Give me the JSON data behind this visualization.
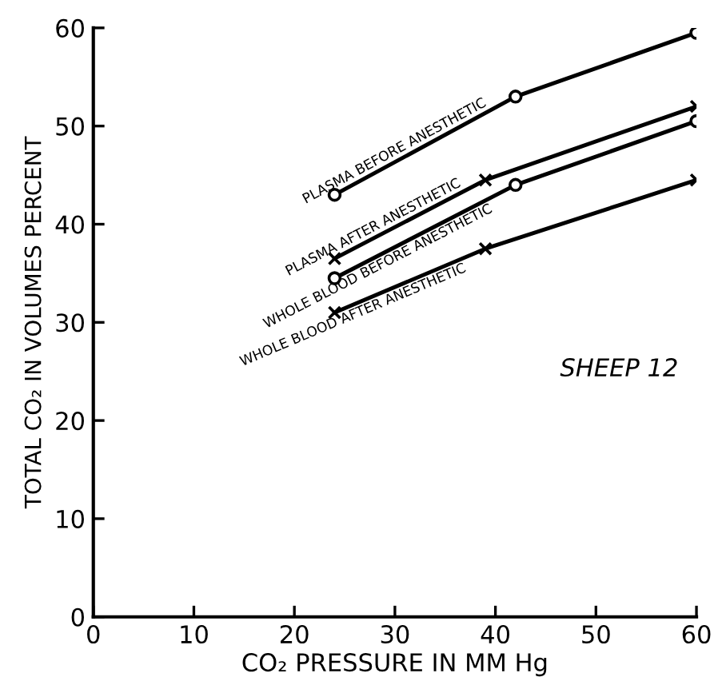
{
  "chart_data": {
    "type": "line",
    "xlabel": "CO₂ PRESSURE IN MM Hg",
    "ylabel": "TOTAL CO₂ IN VOLUMES PERCENT",
    "annotations": [
      "SHEEP 12"
    ],
    "xlim": [
      0,
      60
    ],
    "ylim": [
      0,
      60
    ],
    "xticks": [
      0,
      10,
      20,
      30,
      40,
      50,
      60
    ],
    "yticks": [
      0,
      10,
      20,
      30,
      40,
      50,
      60
    ],
    "grid": false,
    "legend": false,
    "line_style": "solid",
    "series": [
      {
        "name": "PLASMA BEFORE ANESTHETIC",
        "color": "#000000",
        "marker": "circle",
        "x": [
          24,
          42,
          60
        ],
        "values": [
          43,
          53,
          59.5
        ]
      },
      {
        "name": "PLASMA AFTER ANESTHETIC",
        "color": "#000000",
        "marker": "cross",
        "x": [
          24,
          39,
          60
        ],
        "values": [
          36.5,
          44.5,
          52
        ]
      },
      {
        "name": "WHOLE BLOOD BEFORE ANESTHETIC",
        "color": "#000000",
        "marker": "circle",
        "x": [
          24,
          42,
          60
        ],
        "values": [
          34.5,
          44,
          50.5
        ]
      },
      {
        "name": "WHOLE BLOOD AFTER ANESTHETIC",
        "color": "#000000",
        "marker": "cross",
        "x": [
          24,
          39,
          60
        ],
        "values": [
          31,
          37.5,
          44.5
        ]
      }
    ]
  }
}
